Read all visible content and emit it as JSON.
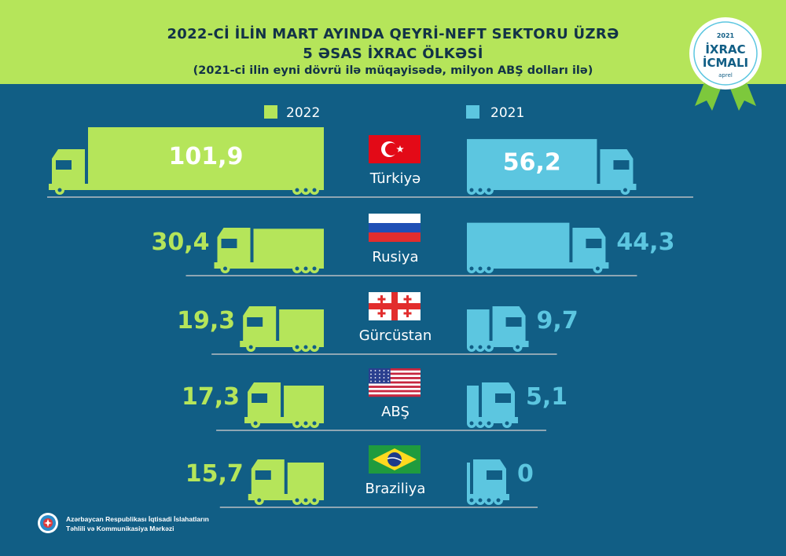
{
  "header": {
    "title_line1": "2022-Cİ İLİN MART AYINDA QEYRİ-NEFT SEKTORU ÜZRƏ",
    "title_line2": "5 ƏSAS İXRAC ÖLKƏSİ",
    "subtitle": "(2021-ci ilin eyni dövrü ilə müqayisədə, milyon ABŞ dolları ilə)"
  },
  "badge": {
    "year": "2021",
    "line1": "İXRAC",
    "line2": "İCMALI",
    "month": "aprel"
  },
  "footer": {
    "line1": "Azərbaycan Respublikası İqtisadi İslahatların",
    "line2": "Təhlili və Kommunikasiya Mərkəzi"
  },
  "colors": {
    "green": "#b5e55a",
    "blue": "#5cc6e0",
    "background": "#115e85",
    "title": "#123247"
  },
  "chart_data": {
    "type": "bar",
    "categories": [
      "Türkiyə",
      "Rusiya",
      "Gürcüstan",
      "ABŞ",
      "Braziliya"
    ],
    "flags": [
      "turkey",
      "russia",
      "georgia",
      "usa",
      "brazil"
    ],
    "series": [
      {
        "name": "2022",
        "values": [
          101.9,
          30.4,
          19.3,
          17.3,
          15.7
        ],
        "labels": [
          "101,9",
          "30,4",
          "19,3",
          "17,3",
          "15,7"
        ],
        "color": "#b5e55a"
      },
      {
        "name": "2021",
        "values": [
          56.2,
          44.3,
          9.7,
          5.1,
          0
        ],
        "labels": [
          "56,2",
          "44,3",
          "9,7",
          "5,1",
          "0"
        ],
        "color": "#5cc6e0"
      }
    ],
    "legend_placement": "top-center",
    "grid": false
  }
}
